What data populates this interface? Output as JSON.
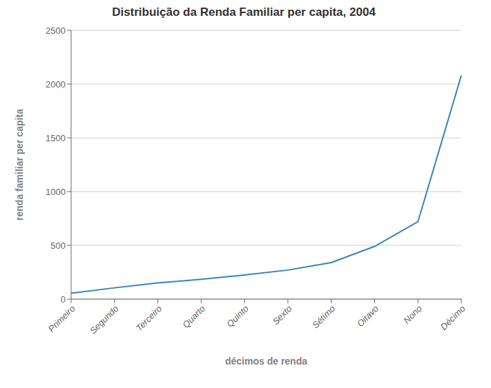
{
  "chart_data": {
    "type": "line",
    "title": "Distribuição da Renda Familiar per capita, 2004",
    "xlabel": "décimos de renda",
    "ylabel": "renda familiar per capita",
    "categories": [
      "Primeiro",
      "Segundo",
      "Terceiro",
      "Quarto",
      "Quinto",
      "Sexto",
      "Sétimo",
      "Oitavo",
      "Nono",
      "Décimo"
    ],
    "values": [
      55,
      105,
      150,
      185,
      225,
      270,
      340,
      490,
      720,
      2080
    ],
    "ylim": [
      0,
      2500
    ],
    "yticks": [
      0,
      500,
      1000,
      1500,
      2000,
      2500
    ],
    "grid": true
  }
}
